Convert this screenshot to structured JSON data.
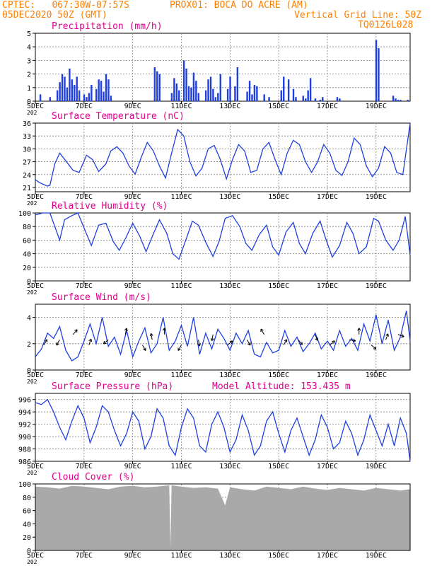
{
  "header": {
    "line1_left": "CPTEC:   067:30W-07:57S",
    "line1_right": "PROX01: BOCA DO ACRE (AM)",
    "line2_left": "05DEC2020 50Z (GMT)",
    "line2_right": "Vertical Grid Line: 50Z",
    "line3_right": "TQ0126L028"
  },
  "colors": {
    "header": "#ff7f00",
    "title": "#e0008c",
    "series": "#1f3fdf",
    "arrow": "#000000",
    "cloud": "#a9a9a9",
    "grid": "#7f7f7f"
  },
  "x_ticks": [
    "5DEC",
    "7DEC",
    "9DEC",
    "11DEC",
    "13DEC",
    "15DEC",
    "17DEC",
    "19DEC"
  ],
  "year_fragment": "202",
  "chart_data": [
    {
      "type": "bar",
      "title": "Precipitation (mm/h)",
      "ylim": [
        0,
        5
      ],
      "yticks": [
        "0",
        "1",
        "2",
        "3",
        "4",
        "5"
      ],
      "day_range": [
        0,
        15
      ],
      "x": [
        0.2,
        0.6,
        0.9,
        1.0,
        1.1,
        1.2,
        1.3,
        1.4,
        1.5,
        1.6,
        1.7,
        1.8,
        2.0,
        2.1,
        2.2,
        2.3,
        2.5,
        2.6,
        2.7,
        2.8,
        2.9,
        3.0,
        3.1,
        4.9,
        5.0,
        5.1,
        5.6,
        5.7,
        5.8,
        5.9,
        6.1,
        6.2,
        6.3,
        6.4,
        6.5,
        6.6,
        6.7,
        7.0,
        7.1,
        7.2,
        7.3,
        7.4,
        7.5,
        7.6,
        7.9,
        8.0,
        8.2,
        8.3,
        8.7,
        8.8,
        8.9,
        9.0,
        9.1,
        9.4,
        9.6,
        10.1,
        10.2,
        10.4,
        10.6,
        10.7,
        11.0,
        11.1,
        11.2,
        11.3,
        11.5,
        11.7,
        11.8,
        12.4,
        12.5,
        14.0,
        14.1,
        14.7,
        14.8,
        14.9,
        15.0,
        15.3
      ],
      "values": [
        0.5,
        0.3,
        0.8,
        1.4,
        2.0,
        1.8,
        1.0,
        2.4,
        1.6,
        1.2,
        1.8,
        0.8,
        0.5,
        0.3,
        0.6,
        1.2,
        0.9,
        1.6,
        1.5,
        0.7,
        2.0,
        1.6,
        0.4,
        2.5,
        2.2,
        2.0,
        0.6,
        1.7,
        1.3,
        0.8,
        3.0,
        2.4,
        1.1,
        1.0,
        2.1,
        1.5,
        0.6,
        0.8,
        1.6,
        1.8,
        0.9,
        0.3,
        0.6,
        2.0,
        0.9,
        1.8,
        1.1,
        2.5,
        0.7,
        1.5,
        0.5,
        1.2,
        1.1,
        0.5,
        0.3,
        0.8,
        1.8,
        1.6,
        0.9,
        0.3,
        0.4,
        0.2,
        0.8,
        1.7,
        0.2,
        0.1,
        0.3,
        0.3,
        0.2,
        4.5,
        3.9,
        0.4,
        0.2,
        0.1,
        0.1,
        0.1
      ]
    },
    {
      "type": "line",
      "title": "Surface Temperature (nC)",
      "ylim": [
        20,
        36
      ],
      "yticks": [
        "21",
        "24",
        "27",
        "30",
        "33",
        "36"
      ],
      "x": [
        0,
        0.15,
        0.3,
        0.5,
        0.6,
        0.8,
        1.0,
        1.25,
        1.55,
        1.8,
        2.1,
        2.35,
        2.6,
        2.9,
        3.1,
        3.35,
        3.6,
        3.85,
        4.1,
        4.35,
        4.6,
        4.85,
        5.1,
        5.35,
        5.6,
        5.85,
        6.1,
        6.35,
        6.6,
        6.85,
        7.1,
        7.35,
        7.6,
        7.85,
        8.1,
        8.35,
        8.6,
        8.85,
        9.1,
        9.35,
        9.6,
        9.85,
        10.1,
        10.35,
        10.6,
        10.85,
        11.1,
        11.35,
        11.6,
        11.85,
        12.1,
        12.35,
        12.6,
        12.85,
        13.1,
        13.35,
        13.6,
        13.85,
        14.1,
        14.35,
        14.6,
        14.85,
        15.1,
        15.4
      ],
      "values": [
        22.8,
        22.2,
        21.8,
        21.3,
        21.5,
        26.5,
        29.0,
        27.2,
        25.0,
        24.5,
        28.5,
        27.5,
        24.7,
        26.5,
        29.5,
        30.5,
        29.0,
        26.0,
        24.1,
        28.0,
        31.5,
        29.5,
        26.0,
        23.2,
        29.0,
        34.5,
        33.0,
        27.0,
        23.7,
        25.5,
        30.0,
        30.8,
        27.5,
        23.0,
        27.5,
        31.0,
        29.5,
        24.5,
        25.0,
        30.0,
        31.5,
        27.5,
        24.0,
        29.0,
        32.0,
        31.0,
        27.0,
        24.5,
        27.0,
        31.0,
        29.0,
        25.0,
        23.8,
        27.0,
        32.5,
        31.0,
        26.0,
        23.5,
        25.5,
        30.5,
        29.0,
        24.5,
        24.0,
        36.0
      ]
    },
    {
      "type": "line",
      "title": "Relative Humidity (%)",
      "ylim": [
        0,
        100
      ],
      "yticks": [
        "0",
        "20",
        "40",
        "60",
        "80",
        "100"
      ],
      "x": [
        0,
        0.3,
        0.6,
        0.8,
        1.0,
        1.2,
        1.5,
        1.75,
        2.0,
        2.3,
        2.6,
        2.9,
        3.2,
        3.45,
        3.7,
        4.0,
        4.3,
        4.55,
        4.8,
        5.1,
        5.4,
        5.65,
        5.9,
        6.2,
        6.45,
        6.7,
        7.0,
        7.3,
        7.55,
        7.8,
        8.1,
        8.4,
        8.65,
        8.9,
        9.2,
        9.5,
        9.75,
        10.0,
        10.3,
        10.6,
        10.85,
        11.1,
        11.4,
        11.7,
        11.95,
        12.2,
        12.5,
        12.8,
        13.05,
        13.3,
        13.6,
        13.9,
        14.1,
        14.4,
        14.7,
        14.95,
        15.2,
        15.4
      ],
      "values": [
        97,
        100,
        100,
        80,
        60,
        90,
        96,
        100,
        78,
        52,
        82,
        85,
        58,
        45,
        62,
        85,
        65,
        43,
        65,
        90,
        70,
        40,
        32,
        62,
        88,
        82,
        57,
        36,
        58,
        92,
        96,
        80,
        55,
        45,
        68,
        82,
        50,
        38,
        72,
        86,
        55,
        40,
        70,
        88,
        60,
        35,
        52,
        86,
        70,
        40,
        50,
        92,
        88,
        60,
        45,
        60,
        95,
        38
      ]
    },
    {
      "type": "line",
      "title": "Surface Wind (m/s)",
      "ylim": [
        0,
        5
      ],
      "yticks": [
        "0",
        "2",
        "4"
      ],
      "x": [
        0,
        0.25,
        0.5,
        0.75,
        1.0,
        1.25,
        1.5,
        1.75,
        2.0,
        2.25,
        2.5,
        2.75,
        3.0,
        3.25,
        3.5,
        3.75,
        4.0,
        4.25,
        4.5,
        4.75,
        5.0,
        5.25,
        5.5,
        5.75,
        6.0,
        6.25,
        6.5,
        6.75,
        7.0,
        7.25,
        7.5,
        7.75,
        8.0,
        8.25,
        8.5,
        8.75,
        9.0,
        9.25,
        9.5,
        9.75,
        10.0,
        10.25,
        10.5,
        10.75,
        11.0,
        11.25,
        11.5,
        11.75,
        12.0,
        12.25,
        12.5,
        12.75,
        13.0,
        13.25,
        13.5,
        13.75,
        14.0,
        14.25,
        14.5,
        14.75,
        15.0,
        15.25,
        15.4
      ],
      "values": [
        1.0,
        1.6,
        2.8,
        2.4,
        3.3,
        1.5,
        0.7,
        1.0,
        2.2,
        3.5,
        2.0,
        4.0,
        1.8,
        2.5,
        1.2,
        3.0,
        1.0,
        2.2,
        3.2,
        1.3,
        2.0,
        4.0,
        1.5,
        2.2,
        3.4,
        1.8,
        4.0,
        1.2,
        2.8,
        1.6,
        3.1,
        2.4,
        1.5,
        2.8,
        2.0,
        3.0,
        1.2,
        1.0,
        2.1,
        1.3,
        1.5,
        3.0,
        1.8,
        2.5,
        1.4,
        2.0,
        2.8,
        1.6,
        2.2,
        1.5,
        3.0,
        1.8,
        2.4,
        1.5,
        3.5,
        2.2,
        4.2,
        2.0,
        3.8,
        1.5,
        2.5,
        4.5,
        2.2
      ]
    },
    {
      "type": "line",
      "title": "Surface Pressure (hPa)",
      "subtitle": "Model Altitude: 153.435 m",
      "ylim": [
        986,
        997
      ],
      "yticks": [
        "986",
        "988",
        "990",
        "992",
        "994",
        "996"
      ],
      "x": [
        0,
        0.25,
        0.5,
        0.75,
        1.0,
        1.25,
        1.5,
        1.75,
        2.0,
        2.25,
        2.5,
        2.75,
        3.0,
        3.25,
        3.5,
        3.75,
        4.0,
        4.25,
        4.5,
        4.75,
        5.0,
        5.25,
        5.5,
        5.75,
        6.0,
        6.25,
        6.5,
        6.75,
        7.0,
        7.25,
        7.5,
        7.75,
        8.0,
        8.25,
        8.5,
        8.75,
        9.0,
        9.25,
        9.5,
        9.75,
        10.0,
        10.25,
        10.5,
        10.75,
        11.0,
        11.25,
        11.5,
        11.75,
        12.0,
        12.25,
        12.5,
        12.75,
        13.0,
        13.25,
        13.5,
        13.75,
        14.0,
        14.25,
        14.5,
        14.75,
        15.0,
        15.25,
        15.4
      ],
      "values": [
        995.5,
        995.2,
        996.0,
        994.0,
        991.5,
        989.5,
        992.5,
        995.0,
        993.0,
        989.0,
        991.5,
        995.0,
        994.0,
        991.0,
        988.5,
        990.5,
        994.0,
        992.5,
        988.0,
        990.0,
        994.5,
        993.0,
        988.5,
        987.0,
        991.5,
        994.5,
        993.0,
        988.5,
        987.5,
        992.0,
        994.0,
        991.5,
        987.5,
        989.5,
        993.5,
        991.0,
        987.0,
        988.5,
        992.5,
        994.0,
        990.5,
        987.5,
        991.0,
        993.0,
        990.0,
        987.0,
        989.5,
        993.5,
        991.5,
        988.0,
        989.0,
        992.5,
        990.5,
        987.0,
        989.5,
        993.5,
        991.0,
        988.5,
        992.0,
        988.5,
        993.0,
        990.5,
        986.0
      ]
    },
    {
      "type": "area",
      "title": "Cloud Cover (%)",
      "ylim": [
        0,
        100
      ],
      "yticks": [
        "0",
        "20",
        "40",
        "60",
        "80",
        "100"
      ],
      "x": [
        0,
        0.5,
        1.0,
        1.5,
        2.0,
        2.5,
        3.0,
        3.5,
        4.0,
        4.5,
        5.0,
        5.5,
        5.55,
        5.6,
        6.0,
        6.5,
        7.0,
        7.5,
        7.8,
        8.0,
        8.5,
        9.0,
        9.5,
        10.0,
        10.5,
        11.0,
        11.5,
        12.0,
        12.5,
        13.0,
        13.5,
        14.0,
        14.5,
        15.0,
        15.4
      ],
      "values": [
        96,
        95,
        93,
        97,
        96,
        94,
        92,
        96,
        97,
        95,
        96,
        98,
        5,
        98,
        96,
        94,
        95,
        93,
        68,
        95,
        92,
        90,
        96,
        94,
        92,
        96,
        93,
        91,
        94,
        92,
        90,
        94,
        92,
        90,
        92
      ]
    }
  ]
}
